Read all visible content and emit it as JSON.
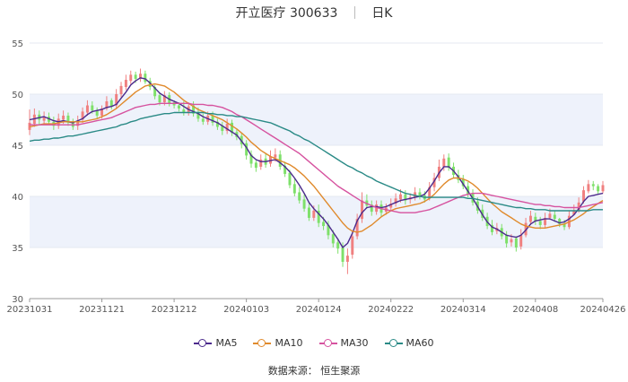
{
  "title": {
    "name": "开立医疗",
    "code": "300633",
    "period": "日K"
  },
  "source": "数据来源：  恒生聚源",
  "colors": {
    "up": "#f08080",
    "down": "#7ee06a",
    "MA5": "#4b2a8c",
    "MA10": "#e08a2c",
    "MA30": "#d6529f",
    "MA60": "#2a8a86",
    "band": "#eef2fb"
  },
  "legend": [
    {
      "name": "MA5",
      "color": "#4b2a8c"
    },
    {
      "name": "MA10",
      "color": "#e08a2c"
    },
    {
      "name": "MA30",
      "color": "#d6529f"
    },
    {
      "name": "MA60",
      "color": "#2a8a86"
    }
  ],
  "chart_data": {
    "type": "candlestick",
    "ylim": [
      30,
      55
    ],
    "yticks": [
      30,
      35,
      40,
      45,
      50,
      55
    ],
    "grid": true,
    "legend_position": "bottom",
    "xticks": [
      "20231031",
      "20231121",
      "20231212",
      "20240103",
      "20240124",
      "20240222",
      "20240314",
      "20240408",
      "20240426"
    ],
    "dates": [
      "20231031",
      "20231101",
      "20231102",
      "20231103",
      "20231106",
      "20231107",
      "20231108",
      "20231109",
      "20231110",
      "20231113",
      "20231114",
      "20231115",
      "20231116",
      "20231117",
      "20231120",
      "20231121",
      "20231122",
      "20231123",
      "20231124",
      "20231127",
      "20231128",
      "20231129",
      "20231130",
      "20231201",
      "20231204",
      "20231205",
      "20231206",
      "20231207",
      "20231208",
      "20231211",
      "20231212",
      "20231213",
      "20231214",
      "20231215",
      "20231218",
      "20231219",
      "20231220",
      "20231221",
      "20231222",
      "20231225",
      "20231226",
      "20231227",
      "20231228",
      "20231229",
      "20240102",
      "20240103",
      "20240104",
      "20240105",
      "20240108",
      "20240109",
      "20240110",
      "20240111",
      "20240112",
      "20240115",
      "20240116",
      "20240117",
      "20240118",
      "20240119",
      "20240122",
      "20240123",
      "20240124",
      "20240125",
      "20240126",
      "20240129",
      "20240130",
      "20240131",
      "20240201",
      "20240202",
      "20240205",
      "20240206",
      "20240207",
      "20240208",
      "20240219",
      "20240220",
      "20240221",
      "20240222",
      "20240223",
      "20240226",
      "20240227",
      "20240228",
      "20240229",
      "20240301",
      "20240304",
      "20240305",
      "20240306",
      "20240307",
      "20240308",
      "20240311",
      "20240312",
      "20240313",
      "20240314",
      "20240315",
      "20240318",
      "20240319",
      "20240320",
      "20240321",
      "20240322",
      "20240325",
      "20240326",
      "20240327",
      "20240328",
      "20240329",
      "20240401",
      "20240402",
      "20240403",
      "20240408",
      "20240409",
      "20240410",
      "20240411",
      "20240412",
      "20240415",
      "20240416",
      "20240417",
      "20240418",
      "20240419",
      "20240422",
      "20240423",
      "20240424",
      "20240425",
      "20240426"
    ],
    "close": [
      47.2,
      48.0,
      47.5,
      47.8,
      47.3,
      46.9,
      47.6,
      47.9,
      47.2,
      46.8,
      47.4,
      48.3,
      48.9,
      48.4,
      47.9,
      48.6,
      49.3,
      48.8,
      50.0,
      50.8,
      51.4,
      51.9,
      51.5,
      52.0,
      51.2,
      50.7,
      49.8,
      49.2,
      49.9,
      49.1,
      48.9,
      48.6,
      48.2,
      48.8,
      48.1,
      47.6,
      47.3,
      47.9,
      47.2,
      46.8,
      46.4,
      47.1,
      46.2,
      45.8,
      45.1,
      44.0,
      43.2,
      42.8,
      43.6,
      43.1,
      43.9,
      44.1,
      42.9,
      42.2,
      41.1,
      40.3,
      39.6,
      38.8,
      37.9,
      38.6,
      37.4,
      37.1,
      36.2,
      35.4,
      34.9,
      33.6,
      34.2,
      36.1,
      37.8,
      39.6,
      39.1,
      38.5,
      39.2,
      38.4,
      38.9,
      39.3,
      39.8,
      40.2,
      39.6,
      39.9,
      40.4,
      40.0,
      39.7,
      40.9,
      41.8,
      42.9,
      43.7,
      42.8,
      42.1,
      41.6,
      41.0,
      40.2,
      39.4,
      38.6,
      37.9,
      37.1,
      36.5,
      36.9,
      36.1,
      35.4,
      35.8,
      35.0,
      36.2,
      37.4,
      38.1,
      37.6,
      37.2,
      37.9,
      38.3,
      37.8,
      37.3,
      37.0,
      38.1,
      38.6,
      39.4,
      40.6,
      41.2,
      41.0,
      40.5,
      41.1
    ],
    "open": [
      46.5,
      47.1,
      48.0,
      47.4,
      47.8,
      47.3,
      46.9,
      47.5,
      47.9,
      47.2,
      46.9,
      47.5,
      48.2,
      48.9,
      48.4,
      47.9,
      48.6,
      49.4,
      48.9,
      50.0,
      50.7,
      51.3,
      51.9,
      51.5,
      52.0,
      51.3,
      50.7,
      49.9,
      49.2,
      49.9,
      49.2,
      48.9,
      48.5,
      48.2,
      48.9,
      48.2,
      47.6,
      47.3,
      47.9,
      47.3,
      46.9,
      46.4,
      47.2,
      46.3,
      45.9,
      45.2,
      44.1,
      43.3,
      42.9,
      43.7,
      43.2,
      43.8,
      44.1,
      43.0,
      42.3,
      41.2,
      40.4,
      39.7,
      38.9,
      37.9,
      38.6,
      37.5,
      37.2,
      36.3,
      35.5,
      35.0,
      33.6,
      34.3,
      36.1,
      37.8,
      39.6,
      39.2,
      38.5,
      39.2,
      38.5,
      38.9,
      39.3,
      39.7,
      40.2,
      39.7,
      39.9,
      40.4,
      40.1,
      39.8,
      40.9,
      41.8,
      42.9,
      43.8,
      42.9,
      42.1,
      41.7,
      41.0,
      40.3,
      39.5,
      38.7,
      38.0,
      37.2,
      36.6,
      36.9,
      36.2,
      35.5,
      35.9,
      35.1,
      36.2,
      37.5,
      38.0,
      37.6,
      37.2,
      37.9,
      38.2,
      37.8,
      37.3,
      37.0,
      38.2,
      38.6,
      39.5,
      40.5,
      41.2,
      41.0,
      40.5
    ],
    "high": [
      48.5,
      48.6,
      48.4,
      48.3,
      48.2,
      47.8,
      48.1,
      48.4,
      48.2,
      47.6,
      47.9,
      48.7,
      49.4,
      49.3,
      48.7,
      48.9,
      49.8,
      49.6,
      50.5,
      51.2,
      51.9,
      52.3,
      52.2,
      52.5,
      52.3,
      51.6,
      50.9,
      50.1,
      50.3,
      50.2,
      49.4,
      49.2,
      49.3,
      49.2,
      49.3,
      48.7,
      48.1,
      48.3,
      48.3,
      47.6,
      47.3,
      47.6,
      47.5,
      46.6,
      46.2,
      45.5,
      44.5,
      43.6,
      44.1,
      44.2,
      44.5,
      44.7,
      44.5,
      43.4,
      42.6,
      41.7,
      40.9,
      40.2,
      39.4,
      39.1,
      39.2,
      38.0,
      37.6,
      36.7,
      35.9,
      35.5,
      34.9,
      36.6,
      38.3,
      40.4,
      40.2,
      39.6,
      39.6,
      39.6,
      39.3,
      39.8,
      40.3,
      40.7,
      40.6,
      40.3,
      40.9,
      40.8,
      40.5,
      41.4,
      42.3,
      43.6,
      44.1,
      44.2,
      43.3,
      42.6,
      42.1,
      41.4,
      40.7,
      39.9,
      39.2,
      38.4,
      37.7,
      37.4,
      37.3,
      36.6,
      36.3,
      36.1,
      36.8,
      37.9,
      38.6,
      38.4,
      38.0,
      38.4,
      38.8,
      38.6,
      37.9,
      37.7,
      38.6,
      39.2,
      39.9,
      41.0,
      41.6,
      41.5,
      41.2,
      41.5
    ],
    "low": [
      46.0,
      46.8,
      47.0,
      47.0,
      47.0,
      46.5,
      46.6,
      47.1,
      46.9,
      46.5,
      46.5,
      47.2,
      47.9,
      48.1,
      47.6,
      47.6,
      48.4,
      48.5,
      48.6,
      49.7,
      50.4,
      51.0,
      51.1,
      51.2,
      51.0,
      50.4,
      49.5,
      48.9,
      48.9,
      48.8,
      48.6,
      48.3,
      47.9,
      47.9,
      47.8,
      47.3,
      47.0,
      47.0,
      46.9,
      46.5,
      46.0,
      46.1,
      45.9,
      45.5,
      44.7,
      43.6,
      42.8,
      42.4,
      42.6,
      42.8,
      42.9,
      43.4,
      42.6,
      41.9,
      40.8,
      40.0,
      39.3,
      38.5,
      37.6,
      37.6,
      37.0,
      36.7,
      35.8,
      35.0,
      34.4,
      33.1,
      32.4,
      33.9,
      35.8,
      37.4,
      38.8,
      38.1,
      38.2,
      38.0,
      38.2,
      38.6,
      39.0,
      39.4,
      39.2,
      39.3,
      39.6,
      39.7,
      39.4,
      39.6,
      40.5,
      41.5,
      42.5,
      42.5,
      41.8,
      41.3,
      40.7,
      39.9,
      39.1,
      38.3,
      37.6,
      36.8,
      36.2,
      36.3,
      35.8,
      35.0,
      35.1,
      34.6,
      34.8,
      36.0,
      37.2,
      37.2,
      36.8,
      36.9,
      37.7,
      37.5,
      37.0,
      36.7,
      36.8,
      38.2,
      38.4,
      39.3,
      40.3,
      40.6,
      40.2,
      40.3
    ],
    "series": [
      {
        "name": "MA5",
        "values": [
          47.5,
          47.6,
          47.7,
          47.8,
          47.6,
          47.4,
          47.3,
          47.4,
          47.3,
          47.2,
          47.4,
          47.6,
          48.0,
          48.3,
          48.4,
          48.5,
          48.7,
          48.8,
          49.0,
          49.6,
          50.2,
          50.9,
          51.3,
          51.6,
          51.5,
          51.1,
          50.6,
          50.1,
          49.8,
          49.5,
          49.3,
          49.1,
          48.8,
          48.5,
          48.3,
          48.1,
          47.8,
          47.6,
          47.4,
          47.2,
          46.9,
          46.6,
          46.3,
          46.0,
          45.4,
          44.8,
          44.0,
          43.6,
          43.4,
          43.4,
          43.5,
          43.6,
          43.3,
          42.9,
          42.4,
          41.8,
          41.1,
          40.3,
          39.4,
          38.8,
          38.3,
          37.8,
          37.2,
          36.5,
          35.8,
          35.0,
          35.4,
          36.4,
          37.6,
          38.4,
          38.9,
          39.0,
          39.0,
          38.9,
          39.0,
          39.2,
          39.4,
          39.6,
          39.7,
          39.8,
          39.9,
          40.0,
          40.2,
          40.8,
          41.5,
          42.3,
          42.9,
          42.9,
          42.5,
          41.9,
          41.2,
          40.5,
          39.8,
          39.0,
          38.2,
          37.5,
          37.0,
          36.8,
          36.5,
          36.2,
          36.1,
          36.0,
          36.2,
          36.7,
          37.3,
          37.6,
          37.7,
          37.8,
          37.8,
          37.6,
          37.4,
          37.5,
          37.8,
          38.2,
          38.8,
          39.5,
          40.0,
          40.1,
          40.2,
          40.3
        ]
      },
      {
        "name": "MA10",
        "values": [
          46.8,
          46.9,
          47.0,
          47.1,
          47.1,
          47.1,
          47.2,
          47.3,
          47.3,
          47.3,
          47.3,
          47.3,
          47.4,
          47.5,
          47.6,
          47.8,
          48.0,
          48.3,
          48.6,
          49.0,
          49.4,
          49.8,
          50.2,
          50.5,
          50.8,
          50.9,
          51.0,
          50.9,
          50.8,
          50.5,
          50.2,
          49.8,
          49.4,
          49.1,
          48.8,
          48.5,
          48.3,
          48.1,
          47.9,
          47.7,
          47.5,
          47.2,
          46.9,
          46.6,
          46.2,
          45.8,
          45.3,
          44.9,
          44.5,
          44.2,
          43.9,
          43.7,
          43.5,
          43.3,
          43.1,
          42.8,
          42.4,
          42.0,
          41.5,
          41.0,
          40.4,
          39.8,
          39.2,
          38.6,
          38.0,
          37.4,
          36.9,
          36.6,
          36.5,
          36.6,
          36.9,
          37.2,
          37.6,
          38.0,
          38.3,
          38.6,
          38.8,
          38.9,
          39.0,
          39.1,
          39.2,
          39.3,
          39.5,
          39.8,
          40.2,
          40.7,
          41.2,
          41.6,
          41.8,
          41.8,
          41.7,
          41.5,
          41.2,
          40.8,
          40.3,
          39.8,
          39.3,
          38.9,
          38.5,
          38.2,
          37.9,
          37.6,
          37.3,
          37.1,
          37.0,
          36.9,
          36.9,
          36.9,
          37.0,
          37.1,
          37.2,
          37.3,
          37.5,
          37.7,
          38.0,
          38.3,
          38.7,
          39.0,
          39.3,
          39.6
        ]
      },
      {
        "name": "MA30",
        "values": [
          47.0,
          47.0,
          47.0,
          47.0,
          47.0,
          47.0,
          47.0,
          47.0,
          47.0,
          47.0,
          47.0,
          47.1,
          47.2,
          47.3,
          47.4,
          47.5,
          47.6,
          47.7,
          47.9,
          48.1,
          48.3,
          48.5,
          48.7,
          48.8,
          48.9,
          49.0,
          49.0,
          49.1,
          49.1,
          49.1,
          49.1,
          49.1,
          49.1,
          49.1,
          49.0,
          49.0,
          49.0,
          48.9,
          48.9,
          48.8,
          48.7,
          48.5,
          48.3,
          48.0,
          47.8,
          47.5,
          47.2,
          46.9,
          46.6,
          46.3,
          46.0,
          45.7,
          45.4,
          45.1,
          44.8,
          44.5,
          44.2,
          43.8,
          43.4,
          43.0,
          42.6,
          42.2,
          41.8,
          41.4,
          41.0,
          40.7,
          40.4,
          40.1,
          39.8,
          39.5,
          39.3,
          39.1,
          38.9,
          38.8,
          38.7,
          38.6,
          38.5,
          38.4,
          38.4,
          38.4,
          38.4,
          38.5,
          38.6,
          38.7,
          38.9,
          39.1,
          39.3,
          39.5,
          39.7,
          39.9,
          40.1,
          40.2,
          40.3,
          40.3,
          40.3,
          40.2,
          40.1,
          40.0,
          39.9,
          39.8,
          39.7,
          39.6,
          39.5,
          39.4,
          39.3,
          39.2,
          39.2,
          39.1,
          39.1,
          39.0,
          39.0,
          38.9,
          38.9,
          38.9,
          38.9,
          39.0,
          39.1,
          39.2,
          39.3,
          39.4
        ]
      },
      {
        "name": "MA60",
        "values": [
          45.4,
          45.5,
          45.5,
          45.6,
          45.6,
          45.7,
          45.7,
          45.8,
          45.9,
          45.9,
          46.0,
          46.1,
          46.2,
          46.3,
          46.4,
          46.5,
          46.6,
          46.7,
          46.8,
          47.0,
          47.1,
          47.3,
          47.4,
          47.6,
          47.7,
          47.8,
          47.9,
          48.0,
          48.1,
          48.1,
          48.2,
          48.2,
          48.2,
          48.2,
          48.2,
          48.2,
          48.2,
          48.1,
          48.1,
          48.0,
          48.0,
          47.9,
          47.9,
          47.8,
          47.8,
          47.7,
          47.6,
          47.5,
          47.4,
          47.3,
          47.2,
          47.0,
          46.8,
          46.6,
          46.4,
          46.1,
          45.9,
          45.6,
          45.4,
          45.1,
          44.8,
          44.5,
          44.2,
          43.9,
          43.6,
          43.3,
          43.0,
          42.8,
          42.5,
          42.3,
          42.0,
          41.8,
          41.5,
          41.3,
          41.1,
          40.9,
          40.7,
          40.5,
          40.3,
          40.2,
          40.1,
          40.0,
          39.9,
          39.9,
          39.9,
          39.9,
          39.9,
          39.9,
          39.9,
          39.9,
          39.9,
          39.8,
          39.8,
          39.7,
          39.6,
          39.5,
          39.4,
          39.3,
          39.2,
          39.1,
          39.0,
          38.9,
          38.9,
          38.8,
          38.8,
          38.7,
          38.7,
          38.7,
          38.6,
          38.6,
          38.6,
          38.6,
          38.6,
          38.6,
          38.6,
          38.6,
          38.6,
          38.7,
          38.7,
          38.7
        ]
      }
    ]
  }
}
